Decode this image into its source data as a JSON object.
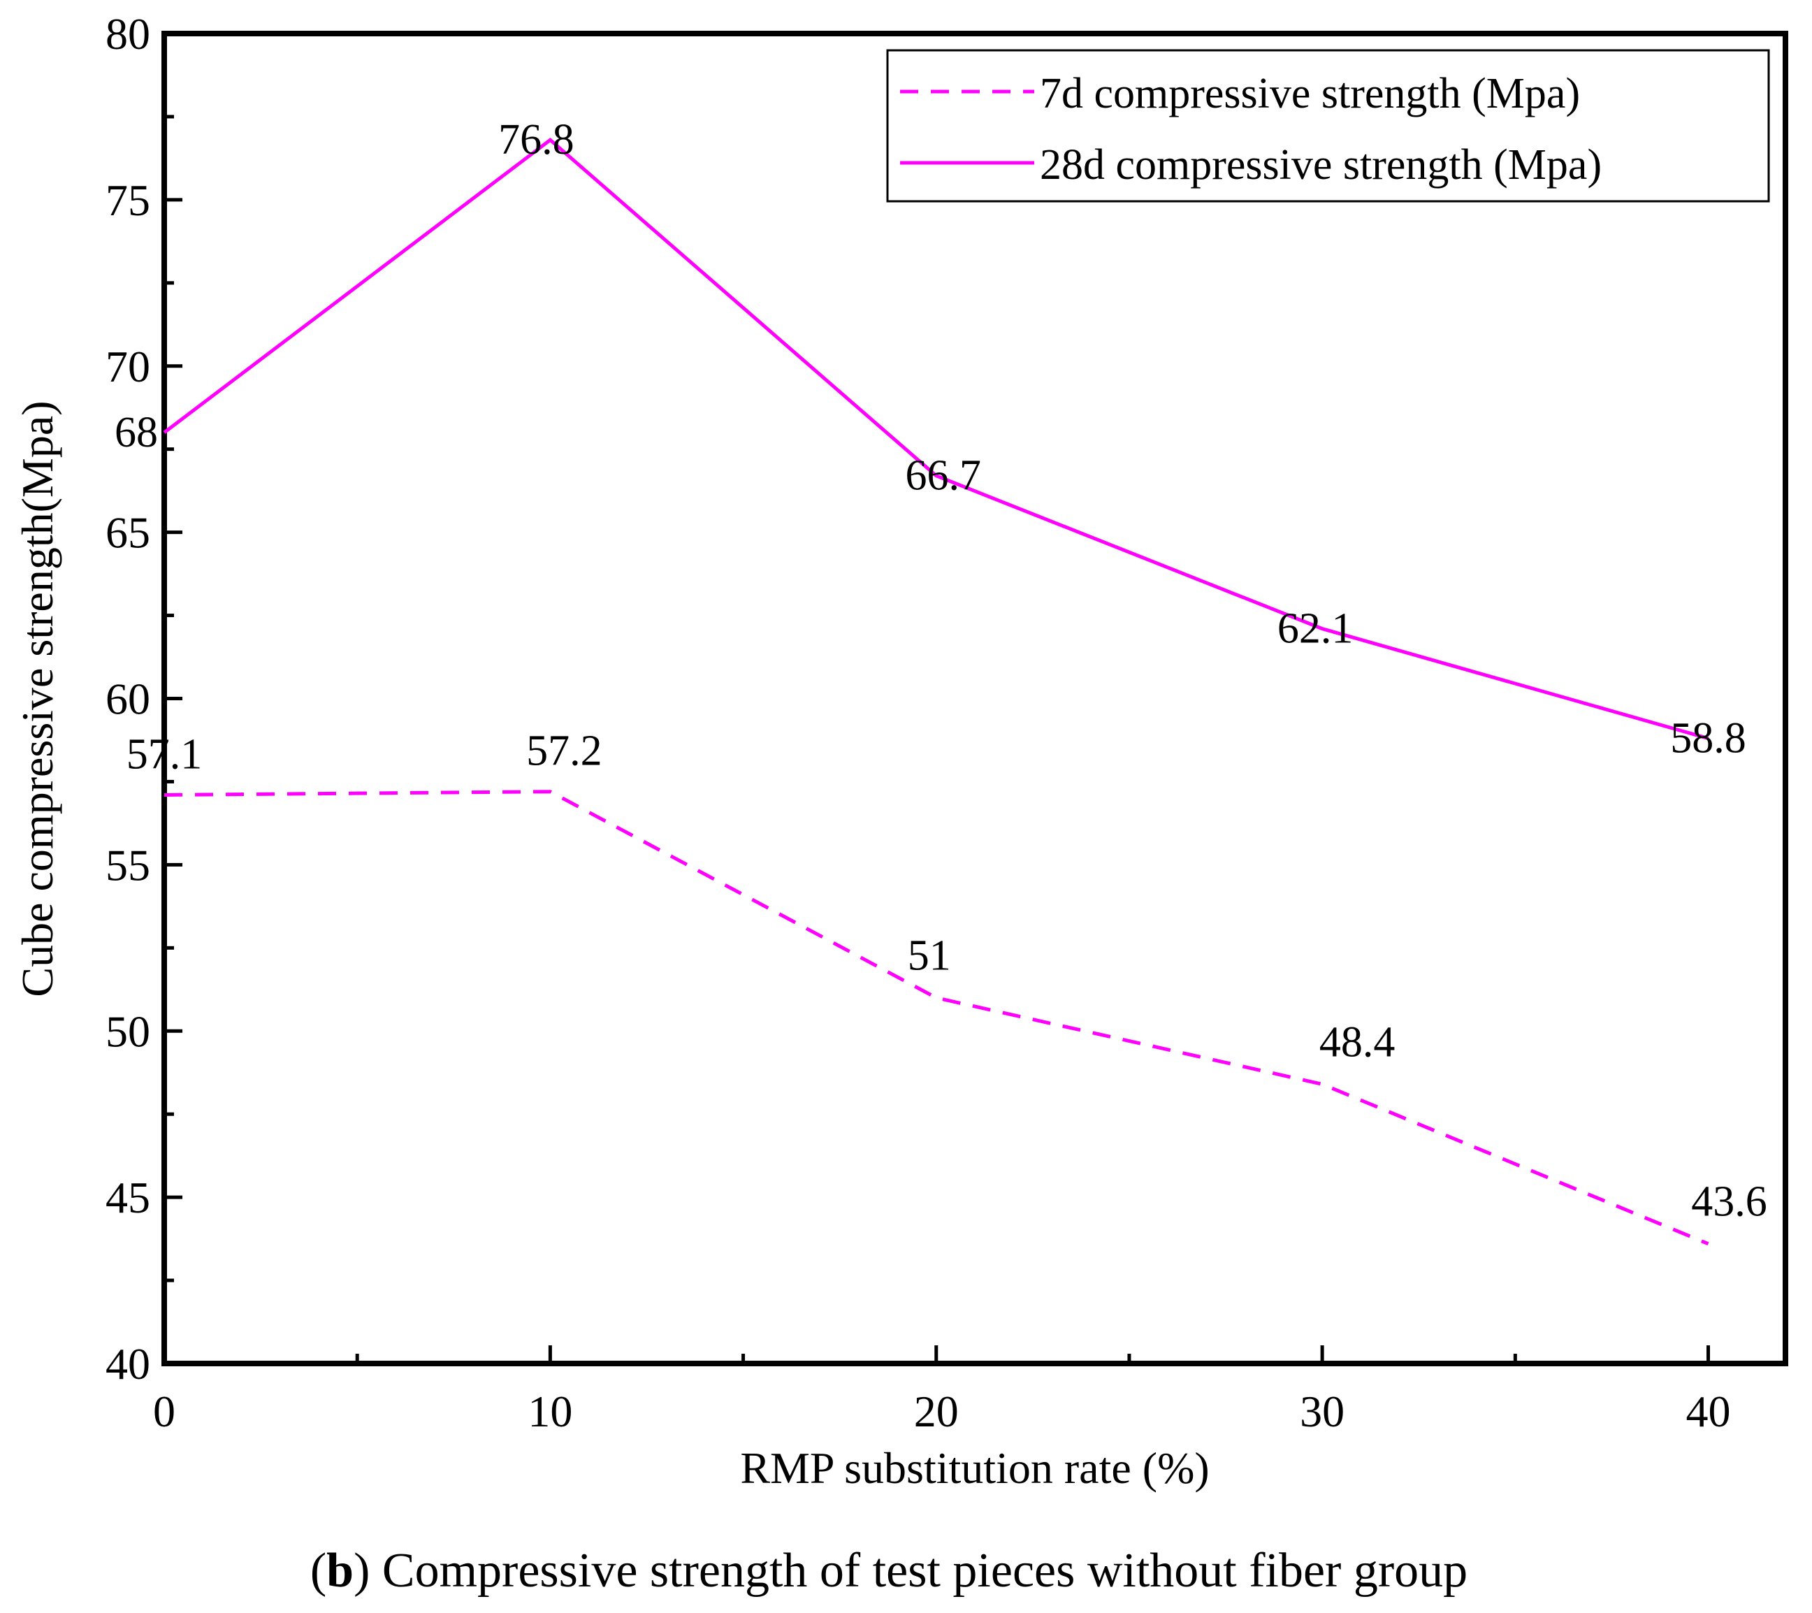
{
  "chart_data": {
    "type": "line",
    "caption_prefix": "(",
    "caption_letter": "b",
    "caption_text": ") Compressive strength of test pieces without fiber group",
    "xlabel": "RMP substitution rate (%)",
    "ylabel": "Cube compressive strength(Mpa)",
    "x": [
      0,
      10,
      20,
      30,
      40
    ],
    "xlim": [
      0,
      42
    ],
    "ylim": [
      40,
      80
    ],
    "x_ticks": [
      "0",
      "10",
      "20",
      "30",
      "40"
    ],
    "y_ticks": [
      "40",
      "45",
      "50",
      "55",
      "60",
      "65",
      "70",
      "75",
      "80"
    ],
    "legend_position": "top-right",
    "color": "#ff00ff",
    "series": [
      {
        "name": "7d compressive strength (Mpa)",
        "style": "dashed",
        "values": [
          57.1,
          57.2,
          51,
          48.4,
          43.6
        ],
        "labels": [
          "57.1",
          "57.2",
          "51",
          "48.4",
          "43.6"
        ]
      },
      {
        "name": "28d compressive strength (Mpa)",
        "style": "solid",
        "values": [
          68,
          76.8,
          66.7,
          62.1,
          58.8
        ],
        "labels": [
          "68",
          "76.8",
          "66.7",
          "62.1",
          "58.8"
        ]
      }
    ]
  }
}
